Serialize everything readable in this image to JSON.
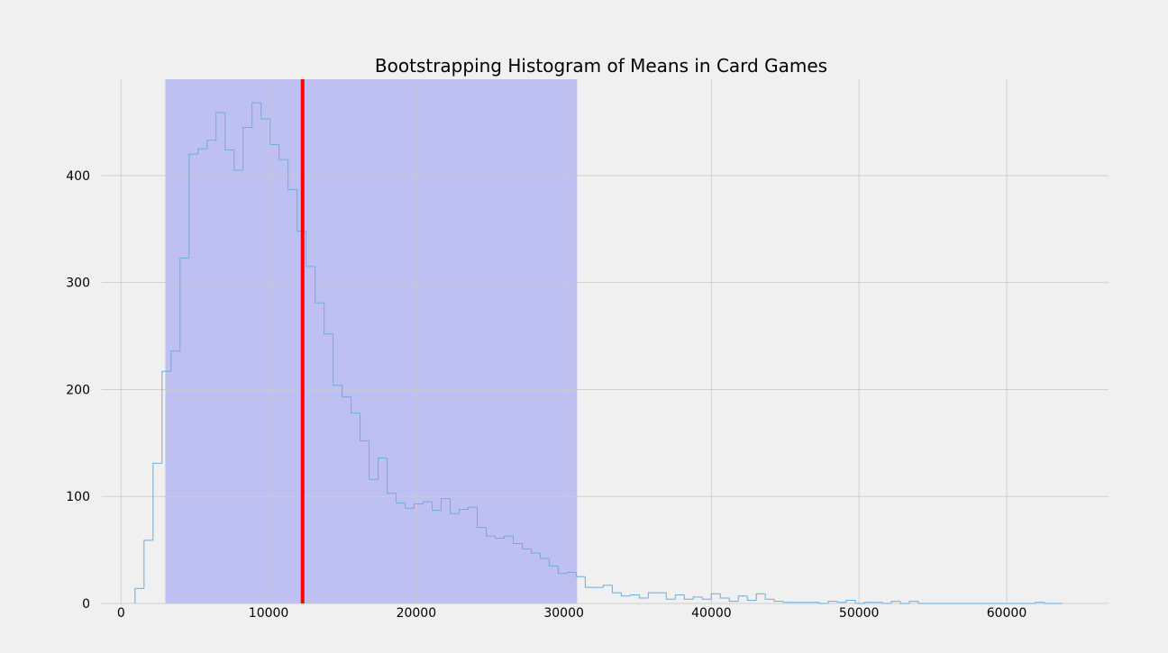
{
  "chart_data": {
    "type": "histogram",
    "title": "Bootstrapping Histogram of Means in Card Games",
    "xlabel": "",
    "ylabel": "",
    "xlim": [
      -1300,
      66900
    ],
    "ylim": [
      0,
      490
    ],
    "grid": true,
    "histtype": "step",
    "x_ticks": [
      0,
      10000,
      20000,
      30000,
      40000,
      50000,
      60000
    ],
    "y_ticks": [
      0,
      100,
      200,
      300,
      400
    ],
    "x_tick_labels": [
      "0",
      "10000",
      "20000",
      "30000",
      "40000",
      "50000",
      "60000"
    ],
    "y_tick_labels": [
      "0",
      "100",
      "200",
      "300",
      "400"
    ],
    "mean_line": 12300,
    "interval_band": [
      3000,
      30900
    ],
    "colors": {
      "background": "#f0f0f0",
      "grid": "#cbcbcb",
      "band": "#bfc0f2",
      "step": "#6aaedc",
      "mean_line": "#ff0000"
    },
    "bin_edges": [
      950,
      1560,
      2170,
      2780,
      3390,
      4000,
      4610,
      5220,
      5830,
      6440,
      7050,
      7660,
      8270,
      8880,
      9490,
      10100,
      10710,
      11320,
      11930,
      12540,
      13150,
      13760,
      14370,
      14980,
      15590,
      16200,
      16810,
      17420,
      18030,
      18640,
      19250,
      19860,
      20470,
      21080,
      21690,
      22300,
      22910,
      23520,
      24130,
      24740,
      25350,
      25960,
      26570,
      27180,
      27790,
      28400,
      29010,
      29620,
      30230,
      30840,
      31450,
      32060,
      32670,
      33280,
      33890,
      34500,
      35110,
      35720,
      36330,
      36940,
      37550,
      38160,
      38770,
      39380,
      39990,
      40600,
      41210,
      41820,
      42430,
      43040,
      43650,
      44260,
      44870,
      45480,
      46090,
      46700,
      47310,
      47920,
      48530,
      49140,
      49750,
      50360,
      50970,
      51580,
      52190,
      52800,
      53410,
      54020,
      54630,
      55240,
      55850,
      56460,
      57070,
      57680,
      58290,
      58900,
      59510,
      60120,
      60730,
      61340,
      61950,
      62560,
      63170,
      63780
    ],
    "counts": [
      14,
      59,
      131,
      217,
      236,
      323,
      420,
      425,
      433,
      459,
      424,
      405,
      445,
      468,
      453,
      429,
      415,
      387,
      348,
      315,
      281,
      252,
      204,
      193,
      178,
      152,
      116,
      136,
      103,
      94,
      89,
      93,
      95,
      87,
      98,
      84,
      88,
      90,
      71,
      63,
      61,
      63,
      56,
      51,
      47,
      42,
      35,
      28,
      29,
      25,
      15,
      15,
      17,
      10,
      7,
      8,
      5,
      10,
      10,
      4,
      8,
      4,
      6,
      4,
      9,
      5,
      2,
      7,
      3,
      9,
      4,
      2,
      1,
      1,
      1,
      1,
      0,
      2,
      1,
      3,
      0,
      1,
      1,
      0,
      2,
      0,
      2,
      0,
      0,
      0,
      0,
      0,
      0,
      0,
      0,
      0,
      0,
      0,
      0,
      0,
      1,
      0,
      0
    ]
  }
}
